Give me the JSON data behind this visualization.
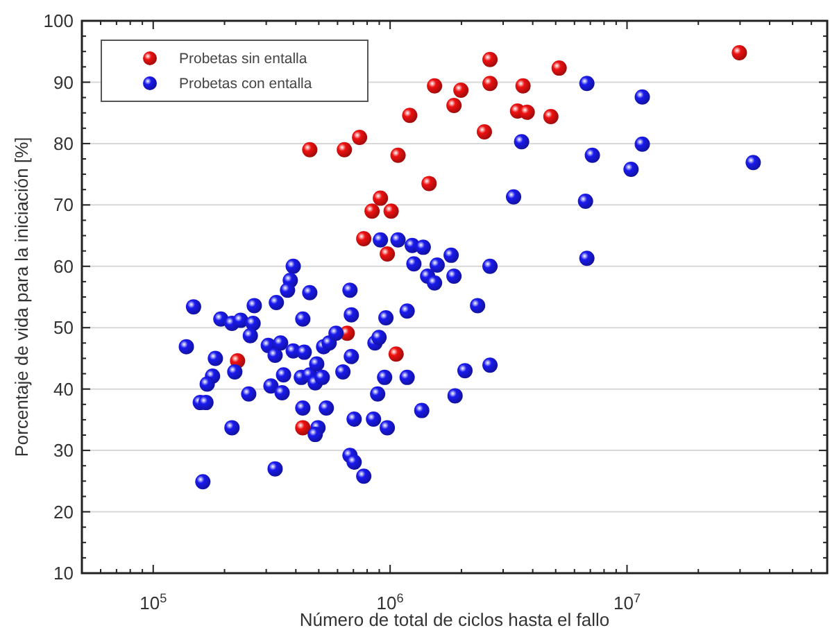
{
  "chart_data": {
    "type": "scatter",
    "xlabel": "Número de total de ciclos hasta el fallo",
    "ylabel": "Porcentaje de vida para la iniciación [%]",
    "log": "x",
    "xlim": [
      50000,
      70000000
    ],
    "xticks": [
      {
        "value": 100000,
        "label": "10$^{5}$"
      },
      {
        "value": 1000000,
        "label": "10$^{6}$"
      },
      {
        "value": 10000000,
        "label": "10$^{7}$"
      }
    ],
    "ylim": [
      10,
      100
    ],
    "yticks": [
      10,
      20,
      30,
      40,
      50,
      60,
      70,
      80,
      90,
      100
    ],
    "grid": "y",
    "legend": "top left",
    "marker": "circle",
    "series": [
      {
        "name": "Probetas sin entalla",
        "color": "#ee1111",
        "x": [
          458000,
          641000,
          743000,
          1080000,
          1210000,
          839000,
          910000,
          1010000,
          774000,
          973000,
          29800000,
          2640000,
          5170000,
          1540000,
          1990000,
          2640000,
          3640000,
          1860000,
          3450000,
          3790000,
          4770000,
          2500000,
          1460000,
          227000,
          659000,
          1060000,
          428000
        ],
        "values": [
          79.0,
          79.0,
          81.0,
          78.1,
          84.6,
          69.0,
          71.1,
          69.0,
          64.5,
          62.0,
          94.8,
          93.7,
          92.3,
          89.4,
          88.7,
          89.8,
          89.4,
          86.2,
          85.3,
          85.1,
          84.4,
          81.9,
          73.5,
          44.6,
          49.1,
          45.7,
          33.7
        ]
      },
      {
        "name": "Probetas con entalla",
        "color": "#1a1aee",
        "x": [
          910000,
          1080000,
          1240000,
          1260000,
          390000,
          379000,
          369000,
          331000,
          458000,
          677000,
          148000,
          267000,
          1180000,
          6770000,
          11600000,
          3590000,
          7140000,
          11600000,
          10400000,
          34100000,
          3320000,
          6680000,
          1380000,
          1810000,
          1580000,
          2640000,
          6770000,
          1440000,
          1860000,
          1540000,
          2340000,
          1180000,
          2070000,
          2640000,
          1880000,
          1360000,
          138000,
          162000,
          183000,
          178000,
          169000,
          158000,
          167000,
          215000,
          193000,
          215000,
          234000,
          264000,
          257000,
          221000,
          253000,
          428000,
          306000,
          327000,
          345000,
          390000,
          434000,
          314000,
          350000,
          355000,
          422000,
          458000,
          490000,
          483000,
          517000,
          428000,
          538000,
          496000,
          483000,
          327000,
          524000,
          553000,
          591000,
          686000,
          632000,
          686000,
          705000,
          677000,
          705000,
          774000,
          863000,
          898000,
          886000,
          851000,
          973000,
          960000,
          948000
        ],
        "values": [
          64.3,
          64.3,
          63.4,
          60.4,
          60.0,
          57.7,
          56.1,
          54.1,
          55.7,
          56.1,
          53.4,
          53.6,
          52.7,
          89.8,
          87.6,
          80.3,
          78.1,
          79.9,
          75.8,
          76.9,
          71.3,
          70.6,
          63.1,
          61.8,
          60.2,
          60.0,
          61.3,
          58.4,
          58.4,
          57.3,
          53.6,
          41.9,
          43.0,
          43.9,
          38.9,
          36.5,
          46.9,
          24.9,
          45.0,
          42.1,
          40.8,
          37.8,
          37.8,
          33.7,
          51.4,
          50.7,
          51.2,
          50.7,
          48.7,
          42.8,
          39.2,
          51.4,
          47.1,
          45.5,
          47.5,
          46.2,
          46.0,
          40.5,
          39.4,
          42.3,
          41.9,
          42.3,
          44.1,
          41.0,
          41.9,
          36.9,
          36.9,
          33.7,
          32.6,
          27.0,
          46.9,
          47.5,
          49.1,
          52.1,
          42.8,
          45.3,
          35.1,
          29.2,
          28.1,
          25.8,
          47.5,
          48.4,
          39.2,
          35.1,
          33.7,
          51.6,
          41.9
        ]
      }
    ]
  }
}
